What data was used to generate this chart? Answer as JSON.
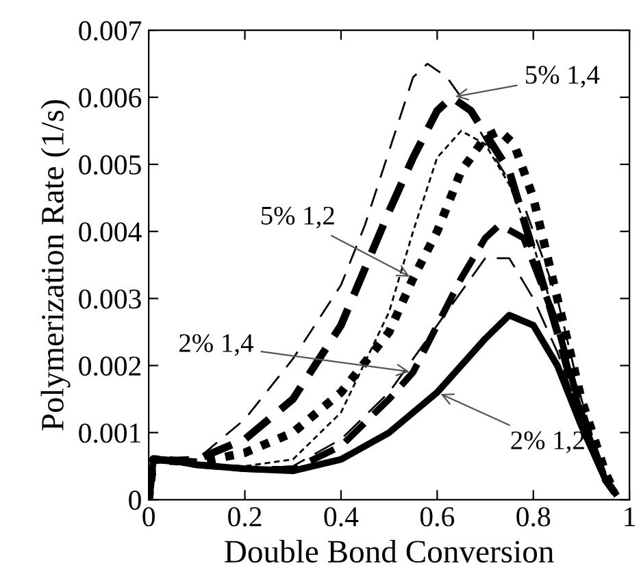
{
  "chart_data": {
    "type": "line",
    "xlabel": "Double Bond Conversion",
    "ylabel": "Polymerization Rate (1/s)",
    "xlim": [
      0,
      1
    ],
    "ylim": [
      0,
      0.007
    ],
    "xticks": [
      {
        "value": 0,
        "label": "0"
      },
      0.2,
      0.4,
      0.6,
      0.8,
      {
        "value": 1,
        "label": "1"
      }
    ],
    "yticks": [
      {
        "value": 0,
        "label": "0"
      },
      0.001,
      0.002,
      0.003,
      0.004,
      0.005,
      0.006,
      0.007
    ],
    "grid": false,
    "legend": false,
    "marker": "none",
    "series": [
      {
        "color": "#000000",
        "line_style": "dashed",
        "x": [
          0,
          0.01,
          0.05,
          0.1,
          0.2,
          0.3,
          0.4,
          0.45,
          0.5,
          0.55,
          0.58,
          0.62,
          0.65,
          0.72,
          0.78,
          0.85,
          0.9,
          0.95,
          0.97
        ],
        "values": [
          0,
          0.0006,
          0.00058,
          0.0006,
          0.0012,
          0.0021,
          0.0032,
          0.0041,
          0.0052,
          0.0063,
          0.0065,
          0.0063,
          0.006,
          0.0051,
          0.0044,
          0.003,
          0.0015,
          0.0003,
          0.0001
        ]
      },
      {
        "color": "#000000",
        "line_style": "dashed",
        "x": [
          0,
          0.01,
          0.05,
          0.1,
          0.2,
          0.3,
          0.4,
          0.5,
          0.55,
          0.6,
          0.63,
          0.67,
          0.75,
          0.8,
          0.85,
          0.9,
          0.95,
          0.97
        ],
        "values": [
          0,
          0.0006,
          0.00058,
          0.0006,
          0.0009,
          0.0015,
          0.0026,
          0.0043,
          0.0051,
          0.0058,
          0.006,
          0.0058,
          0.0049,
          0.0037,
          0.0025,
          0.0012,
          0.0003,
          0.0001
        ]
      },
      {
        "color": "#000000",
        "line_style": "dashed",
        "x": [
          0,
          0.01,
          0.05,
          0.1,
          0.2,
          0.3,
          0.4,
          0.5,
          0.55,
          0.6,
          0.65,
          0.7,
          0.75,
          0.8,
          0.85,
          0.9,
          0.95,
          0.97
        ],
        "values": [
          0,
          0.0006,
          0.00058,
          0.00052,
          0.0005,
          0.0006,
          0.0013,
          0.0028,
          0.004,
          0.0051,
          0.0055,
          0.0053,
          0.0047,
          0.0038,
          0.0026,
          0.0013,
          0.0003,
          0.0001
        ]
      },
      {
        "color": "#000000",
        "line_style": "dotted",
        "x": [
          0,
          0.01,
          0.05,
          0.1,
          0.2,
          0.3,
          0.4,
          0.5,
          0.55,
          0.6,
          0.65,
          0.7,
          0.73,
          0.76,
          0.8,
          0.85,
          0.9,
          0.95,
          0.97
        ],
        "values": [
          0,
          0.0006,
          0.00058,
          0.00055,
          0.0007,
          0.001,
          0.0016,
          0.0025,
          0.0033,
          0.004,
          0.0049,
          0.0054,
          0.0055,
          0.0053,
          0.0045,
          0.003,
          0.0015,
          0.0004,
          0.0001
        ]
      },
      {
        "color": "#000000",
        "line_style": "dashed",
        "x": [
          0,
          0.01,
          0.05,
          0.1,
          0.2,
          0.3,
          0.4,
          0.5,
          0.55,
          0.6,
          0.65,
          0.7,
          0.73,
          0.78,
          0.85,
          0.9,
          0.95,
          0.97
        ],
        "values": [
          0,
          0.0006,
          0.00058,
          0.00052,
          0.00046,
          0.00045,
          0.0008,
          0.0015,
          0.0019,
          0.0026,
          0.0033,
          0.0039,
          0.0041,
          0.0039,
          0.0026,
          0.0013,
          0.0003,
          0.0001
        ]
      },
      {
        "color": "#000000",
        "line_style": "dashed",
        "x": [
          0,
          0.01,
          0.05,
          0.1,
          0.2,
          0.3,
          0.4,
          0.5,
          0.6,
          0.7,
          0.75,
          0.8,
          0.85,
          0.9,
          0.95,
          0.97
        ],
        "values": [
          0,
          0.0006,
          0.00058,
          0.00052,
          0.00046,
          0.0005,
          0.0009,
          0.0016,
          0.0026,
          0.0036,
          0.0036,
          0.003,
          0.0022,
          0.0012,
          0.0003,
          0.0001
        ]
      },
      {
        "color": "#000000",
        "line_style": "solid",
        "x": [
          0,
          0.01,
          0.05,
          0.1,
          0.2,
          0.3,
          0.4,
          0.5,
          0.6,
          0.7,
          0.75,
          0.8,
          0.85,
          0.9,
          0.95,
          0.97
        ],
        "values": [
          0,
          0.0006,
          0.00058,
          0.00052,
          0.00046,
          0.00043,
          0.0006,
          0.001,
          0.0016,
          0.0024,
          0.00275,
          0.0026,
          0.002,
          0.0011,
          0.0003,
          0.0001
        ]
      }
    ],
    "annotations": [
      {
        "text": "5% 1,4",
        "x": 0.63,
        "y": 0.006
      },
      {
        "text": "5% 1,2",
        "x": 0.55,
        "y": 0.0033
      },
      {
        "text": "2% 1,4",
        "x": 0.55,
        "y": 0.0019
      },
      {
        "text": "2% 1,2",
        "x": 0.6,
        "y": 0.0016
      }
    ]
  }
}
